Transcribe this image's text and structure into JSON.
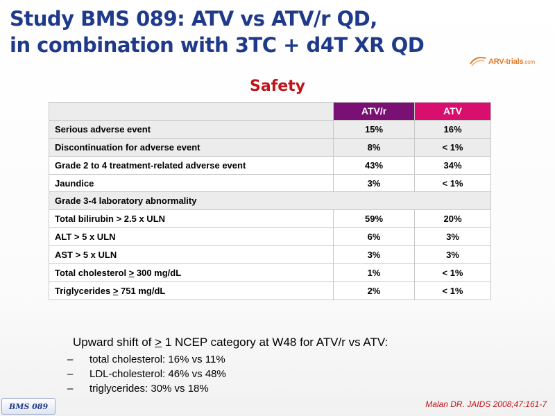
{
  "slide": {
    "title_line1": "Study BMS 089: ATV vs ATV/r QD,",
    "title_line2": "in combination with 3TC + d4T XR QD",
    "logo_text": "ARV-trials",
    "logo_suffix": ".com",
    "subtitle": "Safety",
    "badge": "BMS 089",
    "citation": "Malan DR. JAIDS 2008;47:161-7",
    "colors": {
      "title": "#1f3a8a",
      "subtitle": "#c0141c",
      "atvr_header": "#7a1073",
      "atv_header": "#d90f6f"
    }
  },
  "table": {
    "headers": [
      "",
      "ATV/r",
      "ATV"
    ],
    "rows": [
      {
        "label": "Serious adverse event",
        "atvr": "15%",
        "atv": "16%"
      },
      {
        "label": "Discontinuation for adverse event",
        "atvr": "8%",
        "atv": "< 1%"
      },
      {
        "label": "Grade 2 to 4 treatment-related adverse event",
        "atvr": "43%",
        "atv": "34%"
      },
      {
        "label": "Jaundice",
        "atvr": "3%",
        "atv": "< 1%"
      },
      {
        "label": "Grade 3-4 laboratory abnormality"
      },
      {
        "label": "Total bilirubin > 2.5 x ULN",
        "atvr": "59%",
        "atv": "20%"
      },
      {
        "label": "ALT > 5 x ULN",
        "atvr": "6%",
        "atv": "3%"
      },
      {
        "label": "AST > 5 x ULN",
        "atvr": "3%",
        "atv": "3%"
      },
      {
        "label_pre": "Total cholesterol ",
        "label_sym": ">",
        "label_post": " 300 mg/dL",
        "atvr": "1%",
        "atv": "< 1%"
      },
      {
        "label_pre": "Triglycerides ",
        "label_sym": ">",
        "label_post": " 751 mg/dL",
        "atvr": "2%",
        "atv": "< 1%"
      }
    ]
  },
  "notes": {
    "lead_pre": "Upward shift of ",
    "lead_sym": ">",
    "lead_post": " 1 NCEP category at W48 for ATV/r vs ATV:",
    "dash": "–",
    "items": [
      "total cholesterol: 16% vs 11%",
      "LDL-cholesterol: 46% vs 48%",
      "triglycerides: 30% vs 18%"
    ]
  }
}
